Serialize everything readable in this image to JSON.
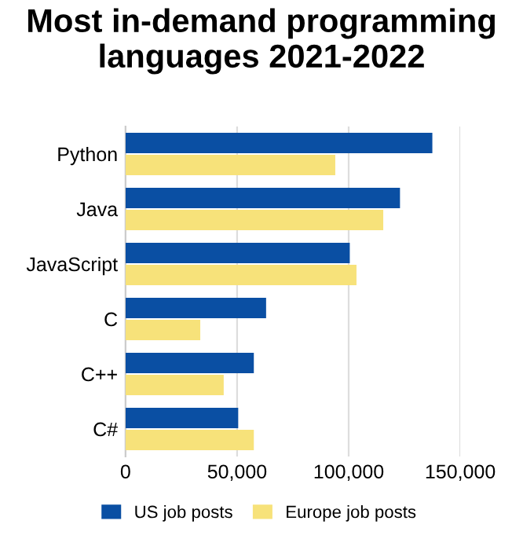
{
  "chart_data": {
    "type": "bar",
    "orientation": "horizontal",
    "title": "Most in-demand programming languages 2021-2022",
    "categories": [
      "Python",
      "Java",
      "JavaScript",
      "C",
      "C++",
      "C#"
    ],
    "series": [
      {
        "name": "US job posts",
        "color": "#0a4fa3",
        "values": [
          137500,
          123000,
          100500,
          63000,
          57500,
          50500
        ]
      },
      {
        "name": "Europe job posts",
        "color": "#f7e27a",
        "values": [
          94000,
          115500,
          103500,
          33500,
          44000,
          57500
        ]
      }
    ],
    "xlim": [
      0,
      150000
    ],
    "xticks": [
      0,
      {
        "value": 50000,
        "label": "50,000"
      },
      {
        "value": 100000,
        "label": "100,000"
      },
      {
        "value": 150000,
        "label": "150,000"
      }
    ],
    "grid": "x",
    "legend": "bottom"
  }
}
